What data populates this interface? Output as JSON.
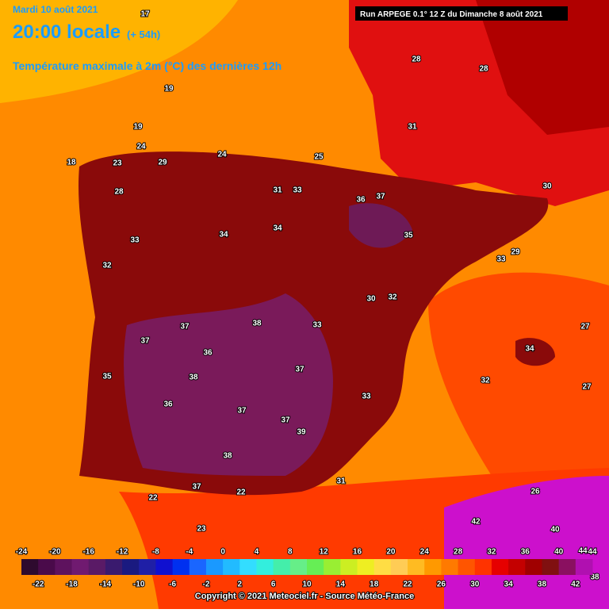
{
  "header": {
    "date": "Mardi 10 août 2021",
    "time": "20:00 locale",
    "lead": "(+ 54h)",
    "title": "Température maximale à 2m (°C) des dernières 12h",
    "run": "Run ARPEGE 0.1° 12 Z du Dimanche 8 août 2021"
  },
  "map": {
    "temperatures": [
      17,
      19,
      19,
      24,
      18,
      23,
      29,
      24,
      25,
      28,
      33,
      32,
      31,
      33,
      34,
      34,
      36,
      37,
      35,
      28,
      31,
      32,
      33,
      37,
      37,
      38,
      36,
      37,
      38,
      37,
      39,
      38,
      35,
      33,
      31,
      30,
      28,
      22,
      23,
      22,
      27,
      29,
      32,
      33,
      30,
      27,
      26,
      42,
      40,
      44,
      38,
      34,
      37,
      36,
      37
    ]
  },
  "colorbar": {
    "ticks_top": [
      -24,
      -20,
      -16,
      -12,
      -8,
      -4,
      0,
      4,
      8,
      12,
      16,
      20,
      24,
      28,
      32,
      36,
      40,
      44
    ],
    "ticks_bottom": [
      -22,
      -18,
      -14,
      -10,
      -6,
      -2,
      2,
      6,
      10,
      14,
      18,
      22,
      26,
      30,
      34,
      38,
      42
    ],
    "range": [
      -24,
      44
    ],
    "colors": [
      "#2e0a2e",
      "#4a0a4a",
      "#5e125e",
      "#701a70",
      "#5a1a66",
      "#3a1a6e",
      "#1a1a80",
      "#1f1fa6",
      "#1010d0",
      "#0030f0",
      "#1a66ff",
      "#1a99ff",
      "#22bbff",
      "#33ddff",
      "#33eedd",
      "#44eeaa",
      "#66ee88",
      "#66ee55",
      "#99ee33",
      "#ccee22",
      "#eeee22",
      "#ffdd44",
      "#ffcc55",
      "#ffbb22",
      "#ff9900",
      "#ff7a00",
      "#ff5500",
      "#ff3300",
      "#e60000",
      "#c40000",
      "#a00000",
      "#801010",
      "#8a1060",
      "#b010b0"
    ]
  },
  "footer": {
    "copyright": "Copyright © 2021 Meteociel.fr - Source Météo-France"
  }
}
